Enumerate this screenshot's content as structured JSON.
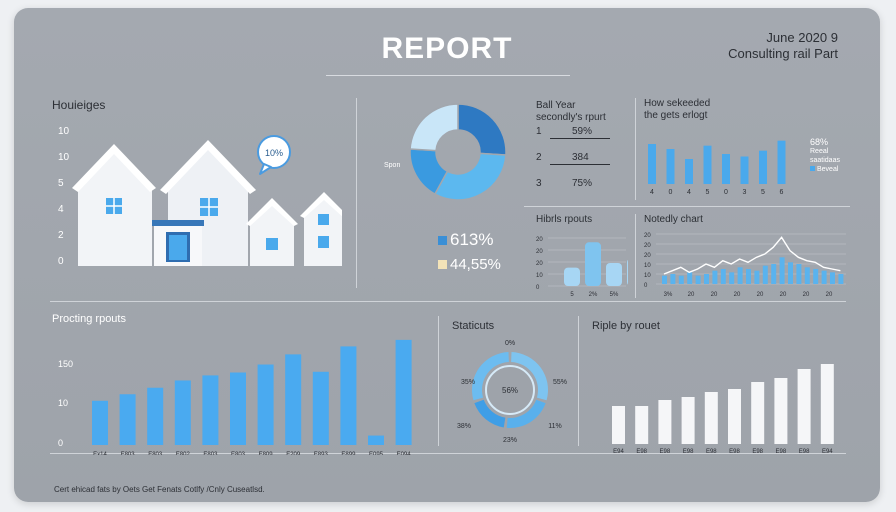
{
  "header": {
    "title": "REPORT",
    "date": "June 2020 9",
    "subtitle": "Consulting rail Part"
  },
  "houses": {
    "title": "Houieiges",
    "y_ticks": [
      "10",
      "10",
      "5",
      "4",
      "2",
      "0"
    ],
    "bubble": "10%"
  },
  "donut": {
    "side_label": "Spon",
    "stat1": "613%",
    "stat2": "44,55%",
    "stat1_color": "#3a8fd6",
    "stat2_color": "#f3e3b8"
  },
  "report_list": {
    "title_line1": "Ball Year",
    "title_line2": "secondly's rpurt",
    "items": [
      {
        "index": "1",
        "value": "59%"
      },
      {
        "index": "2",
        "value": "384"
      },
      {
        "index": "3",
        "value": "75%"
      }
    ]
  },
  "selected": {
    "title_line1": "How sekeeded",
    "title_line2": "the gets erlogt",
    "legend_value": "68%",
    "legend_line1": "Reeal",
    "legend_line2": "saatidaas",
    "legend_line3": "Beveal",
    "x_labels": [
      "4",
      "0",
      "4",
      "5",
      "0",
      "3",
      "5",
      "6"
    ]
  },
  "hibs": {
    "title": "Hibrls rpouts",
    "y_ticks": [
      "20",
      "20",
      "20",
      "10",
      "0"
    ],
    "x_labels": [
      "5",
      "2%",
      "5%",
      "5%"
    ]
  },
  "nodtly": {
    "title": "Notedly chart",
    "y_ticks": [
      "20",
      "20",
      "20",
      "10",
      "10",
      "0"
    ],
    "x_labels": [
      "3%",
      "20",
      "20",
      "20",
      "20",
      "20",
      "20",
      "20"
    ]
  },
  "processing": {
    "title": "Procting rpouts",
    "y_ticks": [
      "150",
      "10",
      "0"
    ],
    "x_labels": [
      "Ex14",
      "E803",
      "E803",
      "E802",
      "E803",
      "E803",
      "E809",
      "E209",
      "E893",
      "E899",
      "E095",
      "E094"
    ]
  },
  "statistics": {
    "title": "Staticuts",
    "center": "56%",
    "labels": [
      "0%",
      "55%",
      "11%",
      "23%",
      "35%",
      "38%"
    ]
  },
  "ripple": {
    "title": "Riple by rouet",
    "x_labels": [
      "E94",
      "E98",
      "E98",
      "E98",
      "E98",
      "E98",
      "E98",
      "E98",
      "E98",
      "E94"
    ]
  },
  "footer": "Cert ehicad fats by Oets Get Fenats Cotlfy /Cnly Cuseatlsd.",
  "colors": {
    "accent": "#4aa9ec",
    "bar_light": "#8fc9ef",
    "white_bar": "#f5f6f8"
  },
  "chart_data": [
    {
      "type": "bar",
      "title": "Procting rpouts",
      "categories": [
        "Ex14",
        "E803",
        "E803",
        "E802",
        "E803",
        "E803",
        "E809",
        "E209",
        "E893",
        "E899",
        "E095",
        "E094"
      ],
      "values": [
        61,
        70,
        79,
        89,
        96,
        100,
        111,
        125,
        101,
        136,
        13,
        145
      ],
      "ylim": [
        0,
        160
      ]
    },
    {
      "type": "bar",
      "title": "How sekeeded the gets erlogt",
      "categories": [
        "4",
        "0",
        "4",
        "5",
        "0",
        "3",
        "5",
        "6"
      ],
      "values": [
        48,
        42,
        30,
        46,
        36,
        33,
        40,
        52
      ],
      "ylim": [
        0,
        60
      ]
    },
    {
      "type": "bar",
      "title": "Riple by rouet",
      "categories": [
        "E94",
        "E98",
        "E98",
        "E98",
        "E98",
        "E98",
        "E98",
        "E98",
        "E98",
        "E94"
      ],
      "values": [
        38,
        38,
        44,
        47,
        52,
        55,
        62,
        66,
        75,
        80
      ],
      "ylim": [
        0,
        100
      ]
    },
    {
      "type": "bar",
      "title": "Hibrls rpouts",
      "categories": [
        "5",
        "2%",
        "5%",
        "5%"
      ],
      "values": [
        8,
        19,
        10,
        12
      ],
      "ylim": [
        0,
        20
      ]
    },
    {
      "type": "line",
      "title": "Notedly chart",
      "x": [
        0,
        1,
        2,
        3,
        4,
        5,
        6,
        7,
        8,
        9,
        10,
        11,
        12,
        13,
        14,
        15,
        16,
        17,
        18,
        19,
        20,
        21
      ],
      "values": [
        6,
        8,
        10,
        7,
        9,
        12,
        10,
        14,
        12,
        15,
        13,
        16,
        18,
        22,
        28,
        20,
        16,
        14,
        13,
        10,
        9,
        8
      ],
      "bars": [
        5,
        6,
        5,
        7,
        5,
        6,
        8,
        9,
        7,
        10,
        9,
        8,
        11,
        12,
        16,
        13,
        12,
        10,
        9,
        8,
        7,
        6
      ],
      "ylim": [
        0,
        30
      ]
    },
    {
      "type": "pie",
      "title": "",
      "values": [
        26,
        32,
        18,
        24
      ]
    },
    {
      "type": "pie",
      "title": "Staticuts",
      "values": [
        30,
        22,
        18,
        30
      ]
    }
  ]
}
